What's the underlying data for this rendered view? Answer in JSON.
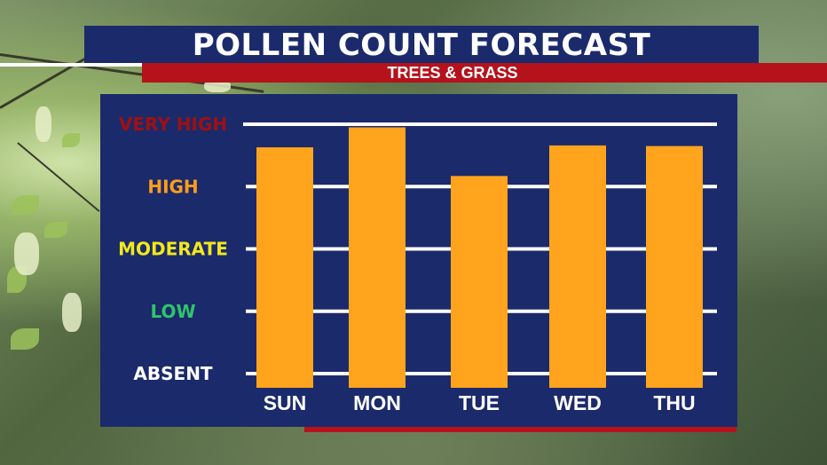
{
  "header": {
    "title": "POLLEN COUNT FORECAST",
    "subtitle": "TREES & GRASS"
  },
  "colors": {
    "panel": "#1b2a6b",
    "accent_red": "#b5121b",
    "bar": "#ffa41c",
    "gridline": "#ffffff"
  },
  "chart_data": {
    "type": "bar",
    "categories": [
      "SUN",
      "MON",
      "TUE",
      "WED",
      "THU"
    ],
    "values": [
      3.63,
      3.95,
      3.17,
      3.66,
      3.65
    ],
    "ylim": [
      0,
      4
    ],
    "y_levels": [
      {
        "label": "ABSENT",
        "value": 0,
        "color": "#ffffff"
      },
      {
        "label": "LOW",
        "value": 1,
        "color": "#2fc46a"
      },
      {
        "label": "MODERATE",
        "value": 2,
        "color": "#f2e81b"
      },
      {
        "label": "HIGH",
        "value": 3,
        "color": "#ff9d1a"
      },
      {
        "label": "VERY HIGH",
        "value": 4,
        "color": "#a01010"
      }
    ],
    "grid": true,
    "legend": "none"
  }
}
